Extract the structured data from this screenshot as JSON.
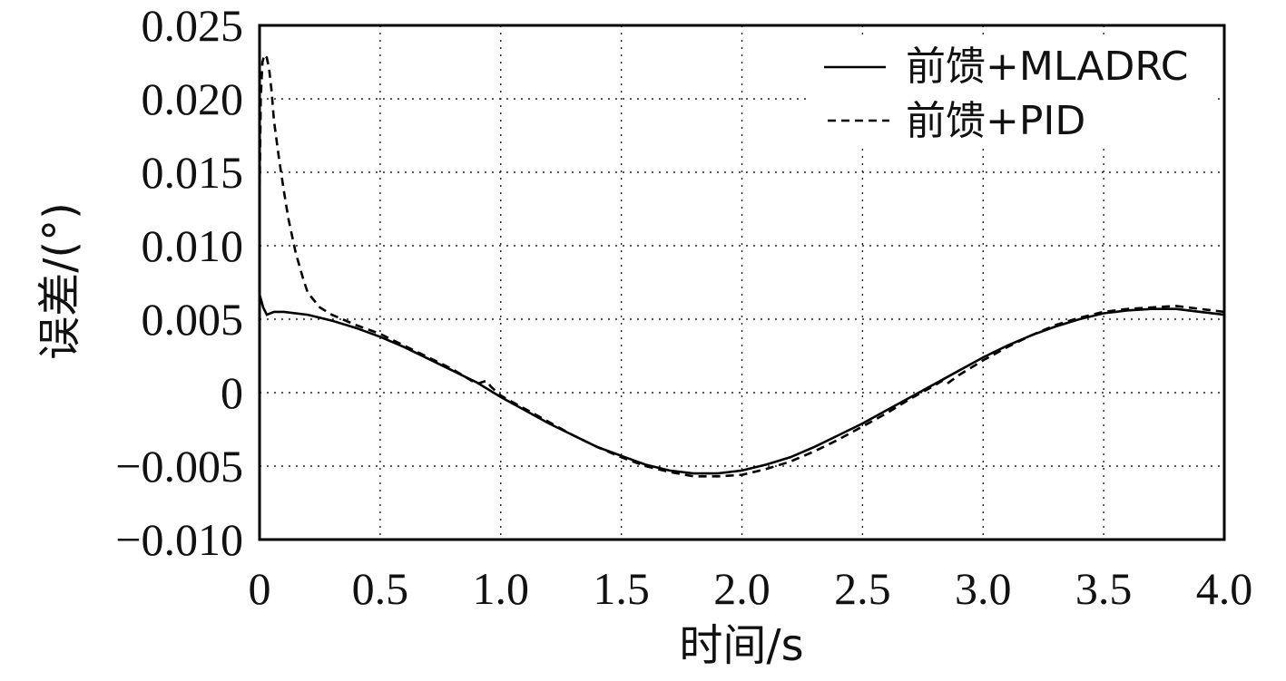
{
  "chart_data": {
    "type": "line",
    "title": "",
    "xlabel": "时间/s",
    "ylabel": "误差/(°)",
    "xlim": [
      0,
      4.0
    ],
    "ylim": [
      -0.01,
      0.025
    ],
    "grid": true,
    "legend_position": "top-right",
    "x_ticks": [
      0,
      0.5,
      1.0,
      1.5,
      2.0,
      2.5,
      3.0,
      3.5,
      4.0
    ],
    "x_tick_labels": [
      "0",
      "0.5",
      "1.0",
      "1.5",
      "2.0",
      "2.5",
      "3.0",
      "3.5",
      "4.0"
    ],
    "y_ticks": [
      -0.01,
      -0.005,
      0,
      0.005,
      0.01,
      0.015,
      0.02,
      0.025
    ],
    "y_tick_labels": [
      "−0.010",
      "−0.005",
      "0",
      "0.005",
      "0.010",
      "0.015",
      "0.020",
      "0.025"
    ],
    "series": [
      {
        "name": "前馈+MLADRC",
        "style": "solid",
        "x": [
          0,
          0.005,
          0.015,
          0.03,
          0.06,
          0.1,
          0.2,
          0.3,
          0.4,
          0.5,
          0.6,
          0.7,
          0.8,
          0.9,
          1.0,
          1.1,
          1.2,
          1.3,
          1.4,
          1.5,
          1.6,
          1.7,
          1.8,
          1.9,
          2.0,
          2.1,
          2.2,
          2.3,
          2.4,
          2.5,
          2.6,
          2.7,
          2.8,
          2.9,
          3.0,
          3.1,
          3.2,
          3.3,
          3.4,
          3.5,
          3.6,
          3.7,
          3.8,
          3.9,
          4.0
        ],
        "y": [
          0.0062,
          0.0064,
          0.0058,
          0.0053,
          0.0055,
          0.0055,
          0.0053,
          0.0049,
          0.0044,
          0.0038,
          0.0031,
          0.0023,
          0.0015,
          0.0007,
          -0.0003,
          -0.0012,
          -0.0021,
          -0.0029,
          -0.0037,
          -0.0043,
          -0.0049,
          -0.0053,
          -0.0055,
          -0.0055,
          -0.0053,
          -0.0049,
          -0.0044,
          -0.0037,
          -0.0029,
          -0.0021,
          -0.0012,
          -0.0003,
          0.0006,
          0.0015,
          0.0024,
          0.0032,
          0.0039,
          0.0045,
          0.005,
          0.0054,
          0.0056,
          0.0057,
          0.0057,
          0.0055,
          0.0053
        ]
      },
      {
        "name": "前馈+PID",
        "style": "dashed",
        "x": [
          0,
          0.005,
          0.012,
          0.02,
          0.03,
          0.04,
          0.05,
          0.06,
          0.08,
          0.1,
          0.12,
          0.15,
          0.18,
          0.2,
          0.25,
          0.3,
          0.4,
          0.5,
          0.6,
          0.7,
          0.8,
          0.9,
          0.94,
          0.96,
          1.0,
          1.1,
          1.2,
          1.3,
          1.4,
          1.5,
          1.6,
          1.7,
          1.8,
          1.9,
          2.0,
          2.1,
          2.2,
          2.3,
          2.4,
          2.5,
          2.6,
          2.7,
          2.8,
          2.83,
          2.85,
          2.9,
          3.0,
          3.1,
          3.2,
          3.3,
          3.4,
          3.5,
          3.6,
          3.7,
          3.8,
          3.9,
          4.0
        ],
        "y": [
          0.013,
          0.02,
          0.0225,
          0.023,
          0.0228,
          0.022,
          0.0205,
          0.0185,
          0.016,
          0.0138,
          0.0118,
          0.0095,
          0.0078,
          0.0068,
          0.0058,
          0.0053,
          0.0046,
          0.004,
          0.0032,
          0.0024,
          0.0016,
          0.0006,
          0.0008,
          0.0004,
          -0.0002,
          -0.0011,
          -0.002,
          -0.0029,
          -0.0037,
          -0.0044,
          -0.005,
          -0.0054,
          -0.0057,
          -0.0057,
          -0.0056,
          -0.0052,
          -0.0047,
          -0.004,
          -0.0032,
          -0.0023,
          -0.0014,
          -0.0004,
          0.0005,
          0.0008,
          0.0006,
          0.0012,
          0.0022,
          0.0031,
          0.0039,
          0.0046,
          0.0051,
          0.0055,
          0.0057,
          0.0058,
          0.0059,
          0.0057,
          0.0055
        ]
      }
    ]
  }
}
